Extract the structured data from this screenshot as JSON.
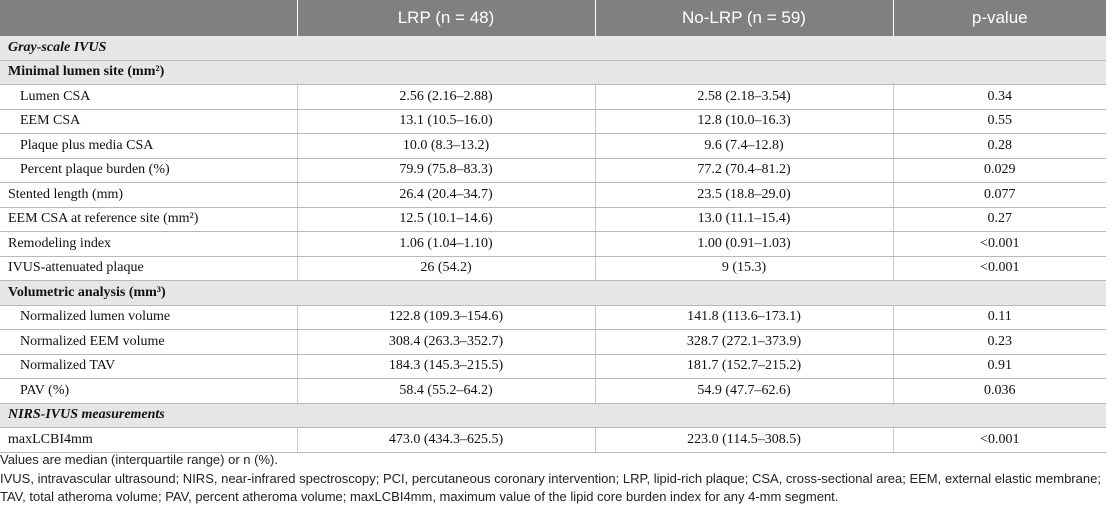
{
  "header": {
    "col0": "",
    "col1": "LRP (n = 48)",
    "col2": "No-LRP (n = 59)",
    "col3": "p-value"
  },
  "rows": [
    {
      "type": "section",
      "italic": true,
      "label": "Gray-scale IVUS"
    },
    {
      "type": "section",
      "italic": false,
      "label": "Minimal lumen site (mm²)"
    },
    {
      "type": "data",
      "indent": true,
      "label": "Lumen CSA",
      "lrp": "2.56 (2.16–2.88)",
      "nolrp": "2.58 (2.18–3.54)",
      "p": "0.34"
    },
    {
      "type": "data",
      "indent": true,
      "label": "EEM CSA",
      "lrp": "13.1 (10.5–16.0)",
      "nolrp": "12.8 (10.0–16.3)",
      "p": "0.55"
    },
    {
      "type": "data",
      "indent": true,
      "label": "Plaque plus media CSA",
      "lrp": "10.0 (8.3–13.2)",
      "nolrp": "9.6 (7.4–12.8)",
      "p": "0.28"
    },
    {
      "type": "data",
      "indent": true,
      "label": "Percent plaque burden (%)",
      "lrp": "79.9 (75.8–83.3)",
      "nolrp": "77.2 (70.4–81.2)",
      "p": "0.029"
    },
    {
      "type": "data",
      "indent": false,
      "label": "Stented length (mm)",
      "lrp": "26.4 (20.4–34.7)",
      "nolrp": "23.5 (18.8–29.0)",
      "p": "0.077"
    },
    {
      "type": "data",
      "indent": false,
      "label": "EEM CSA at reference site (mm²)",
      "lrp": "12.5 (10.1–14.6)",
      "nolrp": "13.0 (11.1–15.4)",
      "p": "0.27"
    },
    {
      "type": "data",
      "indent": false,
      "label": "Remodeling index",
      "lrp": "1.06 (1.04–1.10)",
      "nolrp": "1.00 (0.91–1.03)",
      "p": "<0.001"
    },
    {
      "type": "data",
      "indent": false,
      "label": "IVUS-attenuated plaque",
      "lrp": "26 (54.2)",
      "nolrp": "9 (15.3)",
      "p": "<0.001"
    },
    {
      "type": "section",
      "italic": false,
      "label": "Volumetric analysis (mm³)"
    },
    {
      "type": "data",
      "indent": true,
      "label": "Normalized lumen volume",
      "lrp": "122.8 (109.3–154.6)",
      "nolrp": "141.8 (113.6–173.1)",
      "p": "0.11"
    },
    {
      "type": "data",
      "indent": true,
      "label": "Normalized EEM volume",
      "lrp": "308.4 (263.3–352.7)",
      "nolrp": "328.7 (272.1–373.9)",
      "p": "0.23"
    },
    {
      "type": "data",
      "indent": true,
      "label": "Normalized TAV",
      "lrp": "184.3 (145.3–215.5)",
      "nolrp": "181.7 (152.7–215.2)",
      "p": "0.91"
    },
    {
      "type": "data",
      "indent": true,
      "label": "PAV (%)",
      "lrp": "58.4 (55.2–64.2)",
      "nolrp": "54.9 (47.7–62.6)",
      "p": "0.036"
    },
    {
      "type": "section",
      "italic": true,
      "label": "NIRS-IVUS measurements"
    },
    {
      "type": "data",
      "indent": false,
      "label": "maxLCBI4mm",
      "lrp": "473.0 (434.3–625.5)",
      "nolrp": "223.0 (114.5–308.5)",
      "p": "<0.001"
    }
  ],
  "notes": {
    "line1": "Values are median (interquartile range) or n (%).",
    "line2": "IVUS, intravascular ultrasound; NIRS, near-infrared spectroscopy; PCI, percutaneous coronary intervention; LRP, lipid-rich plaque; CSA, cross-sectional area; EEM, external elastic membrane; TAV, total atheroma volume; PAV, percent atheroma volume; maxLCBI4mm, maximum value of the lipid core burden index for any 4-mm segment."
  }
}
